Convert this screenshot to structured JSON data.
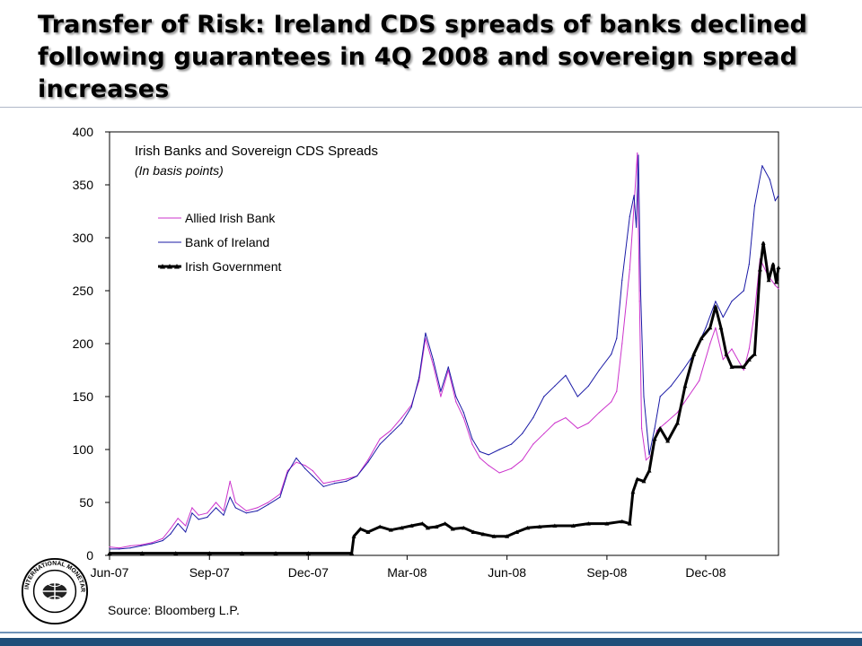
{
  "slide": {
    "title": "Transfer of Risk: Ireland CDS spreads of banks declined following guarantees in 4Q 2008 and sovereign spread increases",
    "source": "Source: Bloomberg L.P.",
    "logo_text": "INTERNATIONAL MONETARY FUND"
  },
  "colors": {
    "footer": "#1f4e79",
    "aib": "#cc33cc",
    "boi": "#1a1aa6",
    "gov": "#000000"
  },
  "chart_data": {
    "type": "line",
    "title": "Irish Banks and Sovereign CDS Spreads",
    "subtitle": "(In basis points)",
    "x_ticks": [
      "Jun-07",
      "Sep-07",
      "Dec-07",
      "Mar-08",
      "Jun-08",
      "Sep-08",
      "Dec-08"
    ],
    "x_tick_dates": [
      "2007-06-01",
      "2007-09-01",
      "2007-12-01",
      "2008-03-01",
      "2008-06-01",
      "2008-09-01",
      "2008-12-01"
    ],
    "xlim": [
      "2007-06-01",
      "2009-02-06"
    ],
    "ylim": [
      0,
      400
    ],
    "y_ticks": [
      0,
      50,
      100,
      150,
      200,
      250,
      300,
      350,
      400
    ],
    "legend_position": "top-left",
    "grid": false,
    "series": [
      {
        "name": "Allied Irish Bank",
        "color": "#cc33cc",
        "points": [
          [
            "2007-06-01",
            8
          ],
          [
            "2007-06-10",
            7
          ],
          [
            "2007-06-20",
            9
          ],
          [
            "2007-06-30",
            10
          ],
          [
            "2007-07-10",
            12
          ],
          [
            "2007-07-20",
            16
          ],
          [
            "2007-07-27",
            25
          ],
          [
            "2007-08-03",
            35
          ],
          [
            "2007-08-10",
            28
          ],
          [
            "2007-08-16",
            45
          ],
          [
            "2007-08-22",
            38
          ],
          [
            "2007-08-30",
            40
          ],
          [
            "2007-09-07",
            50
          ],
          [
            "2007-09-14",
            42
          ],
          [
            "2007-09-20",
            70
          ],
          [
            "2007-09-25",
            50
          ],
          [
            "2007-10-05",
            42
          ],
          [
            "2007-10-15",
            45
          ],
          [
            "2007-10-25",
            50
          ],
          [
            "2007-11-05",
            58
          ],
          [
            "2007-11-12",
            80
          ],
          [
            "2007-11-20",
            88
          ],
          [
            "2007-11-28",
            85
          ],
          [
            "2007-12-05",
            80
          ],
          [
            "2007-12-15",
            68
          ],
          [
            "2007-12-25",
            70
          ],
          [
            "2008-01-05",
            72
          ],
          [
            "2008-01-15",
            75
          ],
          [
            "2008-01-25",
            90
          ],
          [
            "2008-02-05",
            110
          ],
          [
            "2008-02-15",
            118
          ],
          [
            "2008-02-25",
            130
          ],
          [
            "2008-03-05",
            142
          ],
          [
            "2008-03-12",
            165
          ],
          [
            "2008-03-18",
            205
          ],
          [
            "2008-03-25",
            180
          ],
          [
            "2008-04-01",
            150
          ],
          [
            "2008-04-08",
            175
          ],
          [
            "2008-04-15",
            145
          ],
          [
            "2008-04-22",
            130
          ],
          [
            "2008-04-30",
            105
          ],
          [
            "2008-05-07",
            92
          ],
          [
            "2008-05-15",
            85
          ],
          [
            "2008-05-25",
            78
          ],
          [
            "2008-06-05",
            82
          ],
          [
            "2008-06-15",
            90
          ],
          [
            "2008-06-25",
            105
          ],
          [
            "2008-07-05",
            115
          ],
          [
            "2008-07-15",
            125
          ],
          [
            "2008-07-25",
            130
          ],
          [
            "2008-08-05",
            120
          ],
          [
            "2008-08-15",
            125
          ],
          [
            "2008-08-25",
            135
          ],
          [
            "2008-09-05",
            145
          ],
          [
            "2008-09-10",
            155
          ],
          [
            "2008-09-15",
            200
          ],
          [
            "2008-09-22",
            270
          ],
          [
            "2008-09-26",
            330
          ],
          [
            "2008-09-29",
            380
          ],
          [
            "2008-10-01",
            240
          ],
          [
            "2008-10-03",
            120
          ],
          [
            "2008-10-07",
            90
          ],
          [
            "2008-10-12",
            95
          ],
          [
            "2008-10-17",
            118
          ],
          [
            "2008-10-25",
            125
          ],
          [
            "2008-11-05",
            135
          ],
          [
            "2008-11-15",
            150
          ],
          [
            "2008-11-25",
            165
          ],
          [
            "2008-12-05",
            200
          ],
          [
            "2008-12-10",
            215
          ],
          [
            "2008-12-17",
            185
          ],
          [
            "2008-12-25",
            195
          ],
          [
            "2009-01-05",
            175
          ],
          [
            "2009-01-10",
            195
          ],
          [
            "2009-01-15",
            230
          ],
          [
            "2009-01-20",
            280
          ],
          [
            "2009-01-27",
            265
          ],
          [
            "2009-02-03",
            255
          ],
          [
            "2009-02-06",
            252
          ]
        ]
      },
      {
        "name": "Bank of Ireland",
        "color": "#1a1aa6",
        "points": [
          [
            "2007-06-01",
            6
          ],
          [
            "2007-06-10",
            6
          ],
          [
            "2007-06-20",
            7
          ],
          [
            "2007-06-30",
            9
          ],
          [
            "2007-07-10",
            11
          ],
          [
            "2007-07-20",
            14
          ],
          [
            "2007-07-27",
            20
          ],
          [
            "2007-08-03",
            30
          ],
          [
            "2007-08-10",
            22
          ],
          [
            "2007-08-16",
            40
          ],
          [
            "2007-08-22",
            34
          ],
          [
            "2007-08-30",
            36
          ],
          [
            "2007-09-07",
            45
          ],
          [
            "2007-09-14",
            38
          ],
          [
            "2007-09-20",
            55
          ],
          [
            "2007-09-25",
            45
          ],
          [
            "2007-10-05",
            40
          ],
          [
            "2007-10-15",
            42
          ],
          [
            "2007-10-25",
            48
          ],
          [
            "2007-11-05",
            55
          ],
          [
            "2007-11-12",
            78
          ],
          [
            "2007-11-20",
            92
          ],
          [
            "2007-11-28",
            82
          ],
          [
            "2007-12-05",
            75
          ],
          [
            "2007-12-15",
            65
          ],
          [
            "2007-12-25",
            68
          ],
          [
            "2008-01-05",
            70
          ],
          [
            "2008-01-15",
            75
          ],
          [
            "2008-01-25",
            88
          ],
          [
            "2008-02-05",
            105
          ],
          [
            "2008-02-15",
            115
          ],
          [
            "2008-02-25",
            125
          ],
          [
            "2008-03-05",
            140
          ],
          [
            "2008-03-12",
            168
          ],
          [
            "2008-03-18",
            210
          ],
          [
            "2008-03-25",
            185
          ],
          [
            "2008-04-01",
            155
          ],
          [
            "2008-04-08",
            178
          ],
          [
            "2008-04-15",
            150
          ],
          [
            "2008-04-22",
            135
          ],
          [
            "2008-04-30",
            110
          ],
          [
            "2008-05-07",
            98
          ],
          [
            "2008-05-15",
            95
          ],
          [
            "2008-05-25",
            100
          ],
          [
            "2008-06-05",
            105
          ],
          [
            "2008-06-15",
            115
          ],
          [
            "2008-06-25",
            130
          ],
          [
            "2008-07-05",
            150
          ],
          [
            "2008-07-15",
            160
          ],
          [
            "2008-07-25",
            170
          ],
          [
            "2008-08-05",
            150
          ],
          [
            "2008-08-15",
            160
          ],
          [
            "2008-08-25",
            175
          ],
          [
            "2008-09-05",
            190
          ],
          [
            "2008-09-10",
            205
          ],
          [
            "2008-09-15",
            260
          ],
          [
            "2008-09-22",
            320
          ],
          [
            "2008-09-26",
            340
          ],
          [
            "2008-09-28",
            310
          ],
          [
            "2008-09-30",
            378
          ],
          [
            "2008-10-02",
            250
          ],
          [
            "2008-10-05",
            150
          ],
          [
            "2008-10-10",
            95
          ],
          [
            "2008-10-15",
            120
          ],
          [
            "2008-10-20",
            150
          ],
          [
            "2008-10-30",
            160
          ],
          [
            "2008-11-10",
            175
          ],
          [
            "2008-11-20",
            190
          ],
          [
            "2008-12-01",
            215
          ],
          [
            "2008-12-10",
            240
          ],
          [
            "2008-12-17",
            225
          ],
          [
            "2008-12-25",
            240
          ],
          [
            "2009-01-05",
            250
          ],
          [
            "2009-01-10",
            275
          ],
          [
            "2009-01-15",
            330
          ],
          [
            "2009-01-22",
            368
          ],
          [
            "2009-01-29",
            355
          ],
          [
            "2009-02-03",
            335
          ],
          [
            "2009-02-06",
            340
          ]
        ]
      },
      {
        "name": "Irish Government",
        "color": "#000000",
        "points": [
          [
            "2007-06-01",
            2
          ],
          [
            "2007-07-01",
            2
          ],
          [
            "2007-08-01",
            2
          ],
          [
            "2007-09-01",
            2
          ],
          [
            "2007-10-01",
            2
          ],
          [
            "2007-11-01",
            2
          ],
          [
            "2007-12-01",
            2
          ],
          [
            "2008-01-10",
            2
          ],
          [
            "2008-01-12",
            18
          ],
          [
            "2008-01-18",
            25
          ],
          [
            "2008-01-25",
            22
          ],
          [
            "2008-02-05",
            27
          ],
          [
            "2008-02-15",
            24
          ],
          [
            "2008-02-25",
            26
          ],
          [
            "2008-03-05",
            28
          ],
          [
            "2008-03-15",
            30
          ],
          [
            "2008-03-20",
            26
          ],
          [
            "2008-03-28",
            27
          ],
          [
            "2008-04-05",
            30
          ],
          [
            "2008-04-12",
            25
          ],
          [
            "2008-04-22",
            26
          ],
          [
            "2008-05-01",
            22
          ],
          [
            "2008-05-10",
            20
          ],
          [
            "2008-05-20",
            18
          ],
          [
            "2008-06-01",
            18
          ],
          [
            "2008-06-10",
            22
          ],
          [
            "2008-06-20",
            26
          ],
          [
            "2008-07-01",
            27
          ],
          [
            "2008-07-15",
            28
          ],
          [
            "2008-08-01",
            28
          ],
          [
            "2008-08-15",
            30
          ],
          [
            "2008-09-01",
            30
          ],
          [
            "2008-09-15",
            32
          ],
          [
            "2008-09-22",
            30
          ],
          [
            "2008-09-25",
            60
          ],
          [
            "2008-09-29",
            72
          ],
          [
            "2008-10-05",
            70
          ],
          [
            "2008-10-10",
            80
          ],
          [
            "2008-10-15",
            110
          ],
          [
            "2008-10-20",
            120
          ],
          [
            "2008-10-27",
            108
          ],
          [
            "2008-11-05",
            125
          ],
          [
            "2008-11-12",
            160
          ],
          [
            "2008-11-20",
            190
          ],
          [
            "2008-11-27",
            205
          ],
          [
            "2008-12-05",
            215
          ],
          [
            "2008-12-10",
            235
          ],
          [
            "2008-12-15",
            215
          ],
          [
            "2008-12-20",
            190
          ],
          [
            "2008-12-25",
            178
          ],
          [
            "2009-01-05",
            178
          ],
          [
            "2009-01-10",
            185
          ],
          [
            "2009-01-15",
            190
          ],
          [
            "2009-01-20",
            270
          ],
          [
            "2009-01-23",
            295
          ],
          [
            "2009-01-28",
            260
          ],
          [
            "2009-02-01",
            275
          ],
          [
            "2009-02-04",
            258
          ],
          [
            "2009-02-06",
            272
          ]
        ]
      }
    ]
  }
}
